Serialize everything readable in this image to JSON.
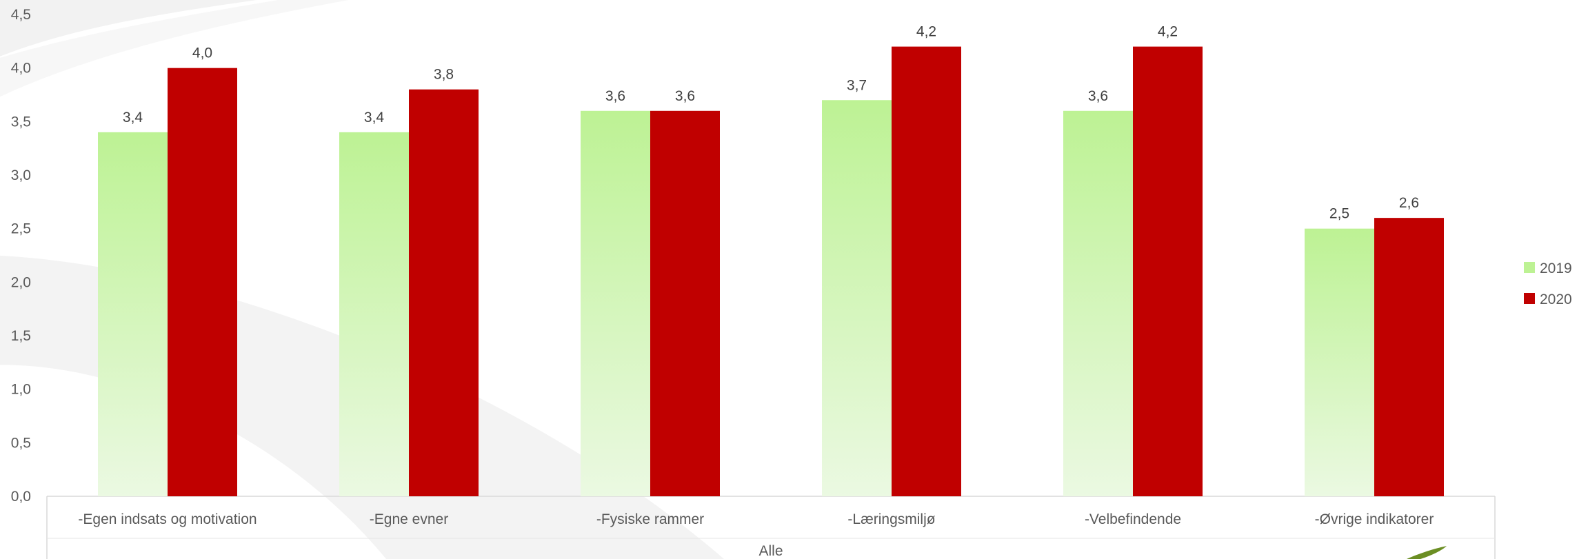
{
  "chart_data": {
    "type": "bar",
    "title": "",
    "xlabel": "Alle",
    "ylabel": "",
    "ylim": [
      0,
      4.5
    ],
    "yticks": [
      "0,0",
      "0,5",
      "1,0",
      "1,5",
      "2,0",
      "2,5",
      "3,0",
      "3,5",
      "4,0",
      "4,5"
    ],
    "categories": [
      "-Egen indsats og motivation",
      "-Egne evner",
      "-Fysiske rammer",
      "-Læringsmiljø",
      "-Velbefindende",
      "-Øvrige indikatorer"
    ],
    "series": [
      {
        "name": "2019",
        "color": "#bdf294",
        "values": [
          3.4,
          3.4,
          3.6,
          3.7,
          3.6,
          2.5
        ],
        "labels": [
          "3,4",
          "3,4",
          "3,6",
          "3,7",
          "3,6",
          "2,5"
        ]
      },
      {
        "name": "2020",
        "color": "#c00000",
        "values": [
          4.0,
          3.8,
          3.6,
          4.2,
          4.2,
          2.6
        ],
        "labels": [
          "4,0",
          "3,8",
          "3,6",
          "4,2",
          "4,2",
          "2,6"
        ]
      }
    ],
    "grid": false,
    "legend": "right"
  }
}
